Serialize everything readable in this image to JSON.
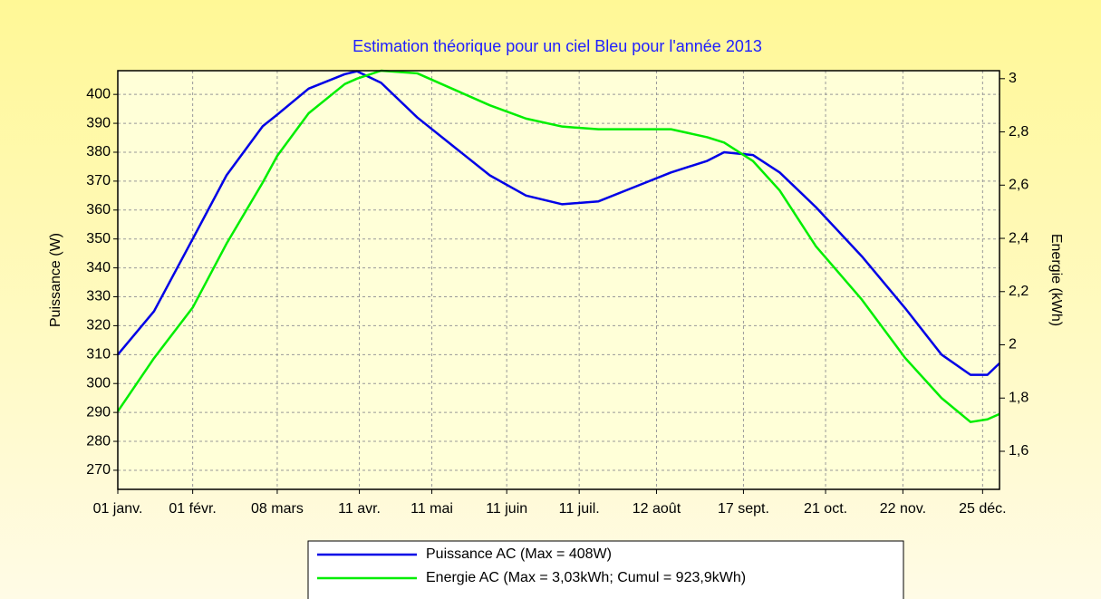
{
  "chart_data": {
    "type": "line",
    "title": "Estimation théorique pour un ciel Bleu pour l'année 2013",
    "ylabel": "Puissance (W)",
    "y2label": "Energie (kWh)",
    "x": [
      0,
      15,
      31,
      45,
      60,
      66,
      79,
      94,
      99,
      109,
      124,
      139,
      154,
      169,
      184,
      199,
      214,
      229,
      244,
      251,
      263,
      274,
      289,
      308,
      326,
      341,
      353,
      360,
      365
    ],
    "xlim": [
      0,
      365
    ],
    "xticks": [
      {
        "value": 0,
        "label": "01 janv."
      },
      {
        "value": 31,
        "label": "01 févr."
      },
      {
        "value": 66,
        "label": "08 mars"
      },
      {
        "value": 100,
        "label": "11 avr."
      },
      {
        "value": 130,
        "label": "11 mai"
      },
      {
        "value": 161,
        "label": "11 juin"
      },
      {
        "value": 191,
        "label": "11 juil."
      },
      {
        "value": 223,
        "label": "12 août"
      },
      {
        "value": 259,
        "label": "17 sept."
      },
      {
        "value": 293,
        "label": "21 oct."
      },
      {
        "value": 325,
        "label": "22 nov."
      },
      {
        "value": 358,
        "label": "25 déc."
      }
    ],
    "ylim": [
      263.4,
      408.2
    ],
    "yticks": [
      270,
      280,
      290,
      300,
      310,
      320,
      330,
      340,
      350,
      360,
      370,
      380,
      390,
      400
    ],
    "y2lim": [
      1.457,
      3.03
    ],
    "y2ticks": [
      {
        "value": 1.6,
        "label": "1,6"
      },
      {
        "value": 1.8,
        "label": "1,8"
      },
      2,
      {
        "value": 2.2,
        "label": "2,2"
      },
      {
        "value": 2.4,
        "label": "2,4"
      },
      {
        "value": 2.6,
        "label": "2,6"
      },
      {
        "value": 2.8,
        "label": "2,8"
      },
      3
    ],
    "grid": true,
    "legend": "bottom",
    "series": [
      {
        "name": "Puissance AC (Max = 408W)",
        "color": "#0000e6",
        "values": [
          310,
          325,
          350,
          372,
          389,
          393,
          402,
          407,
          408,
          404,
          392,
          382,
          372,
          365,
          362,
          363,
          368,
          373,
          377,
          380,
          379,
          373,
          361,
          344,
          326,
          310,
          303,
          303,
          307
        ]
      },
      {
        "name": "Energie AC (Max = 3,03kWh; Cumul = 923,9kWh)",
        "color": "#00ee00",
        "axis": "y2",
        "values": [
          1.75,
          1.95,
          2.14,
          2.38,
          2.61,
          2.71,
          2.87,
          2.98,
          3.0,
          3.03,
          3.02,
          2.96,
          2.9,
          2.85,
          2.82,
          2.81,
          2.81,
          2.81,
          2.78,
          2.76,
          2.69,
          2.58,
          2.37,
          2.17,
          1.95,
          1.8,
          1.71,
          1.72,
          1.74
        ]
      }
    ]
  }
}
